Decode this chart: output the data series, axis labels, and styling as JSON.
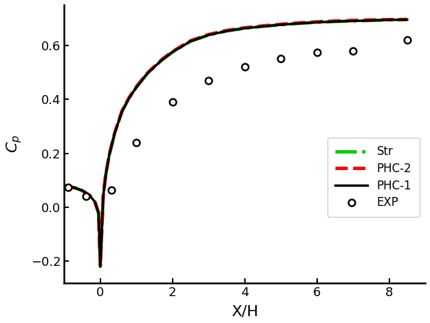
{
  "title": "",
  "xlabel": "X/H",
  "ylabel": "$C_p$",
  "xlim": [
    -1.0,
    9.0
  ],
  "ylim": [
    -0.28,
    0.75
  ],
  "xticks": [
    0,
    2,
    4,
    6,
    8
  ],
  "yticks": [
    -0.2,
    0.0,
    0.2,
    0.4,
    0.6
  ],
  "phc1_x": [
    -1.0,
    -0.7,
    -0.5,
    -0.3,
    -0.15,
    -0.05,
    0.0,
    0.08,
    0.15,
    0.25,
    0.4,
    0.6,
    0.8,
    1.0,
    1.3,
    1.7,
    2.0,
    2.5,
    3.0,
    3.5,
    4.0,
    4.5,
    5.0,
    5.5,
    6.0,
    6.5,
    7.0,
    7.5,
    8.0,
    8.5
  ],
  "phc1_y": [
    0.08,
    0.072,
    0.062,
    0.045,
    0.02,
    -0.02,
    -0.22,
    0.04,
    0.12,
    0.195,
    0.275,
    0.355,
    0.405,
    0.445,
    0.495,
    0.545,
    0.575,
    0.615,
    0.638,
    0.653,
    0.663,
    0.67,
    0.676,
    0.681,
    0.685,
    0.688,
    0.69,
    0.692,
    0.694,
    0.695
  ],
  "phc2_x": [
    -1.0,
    -0.7,
    -0.5,
    -0.3,
    -0.15,
    -0.05,
    0.0,
    0.08,
    0.15,
    0.25,
    0.4,
    0.6,
    0.8,
    1.0,
    1.3,
    1.7,
    2.0,
    2.5,
    3.0,
    3.5,
    4.0,
    4.5,
    5.0,
    5.5,
    6.0,
    6.5,
    7.0,
    7.5,
    8.0,
    8.5
  ],
  "phc2_y": [
    0.08,
    0.072,
    0.062,
    0.045,
    0.02,
    -0.02,
    -0.215,
    0.042,
    0.122,
    0.197,
    0.277,
    0.357,
    0.407,
    0.447,
    0.497,
    0.547,
    0.577,
    0.617,
    0.64,
    0.655,
    0.665,
    0.672,
    0.678,
    0.683,
    0.687,
    0.69,
    0.692,
    0.694,
    0.695,
    0.696
  ],
  "str_x": [
    -1.0,
    -0.7,
    -0.5,
    -0.3,
    -0.15,
    -0.05,
    0.0,
    0.08,
    0.15,
    0.25,
    0.4,
    0.6,
    0.8,
    1.0,
    1.3,
    1.7,
    2.0,
    2.5,
    3.0,
    3.5,
    4.0,
    4.5,
    5.0,
    5.5,
    6.0,
    6.5,
    7.0,
    7.5,
    8.0,
    8.5
  ],
  "str_y": [
    0.08,
    0.072,
    0.062,
    0.045,
    0.02,
    -0.02,
    -0.22,
    0.04,
    0.12,
    0.195,
    0.275,
    0.355,
    0.405,
    0.445,
    0.495,
    0.545,
    0.575,
    0.615,
    0.638,
    0.653,
    0.663,
    0.67,
    0.676,
    0.681,
    0.685,
    0.688,
    0.69,
    0.692,
    0.694,
    0.695
  ],
  "exp_x": [
    -0.9,
    -0.4,
    0.3,
    1.0,
    2.0,
    3.0,
    4.0,
    5.0,
    6.0,
    7.0,
    8.5
  ],
  "exp_y": [
    0.075,
    0.04,
    0.065,
    0.24,
    0.39,
    0.47,
    0.52,
    0.55,
    0.575,
    0.58,
    0.62
  ],
  "phc1_color": "#000000",
  "phc2_color": "#ff0000",
  "str_color": "#00cc00",
  "exp_color": "#000000",
  "legend_labels": [
    "PHC-1",
    "PHC-2",
    "Str",
    "EXP"
  ]
}
